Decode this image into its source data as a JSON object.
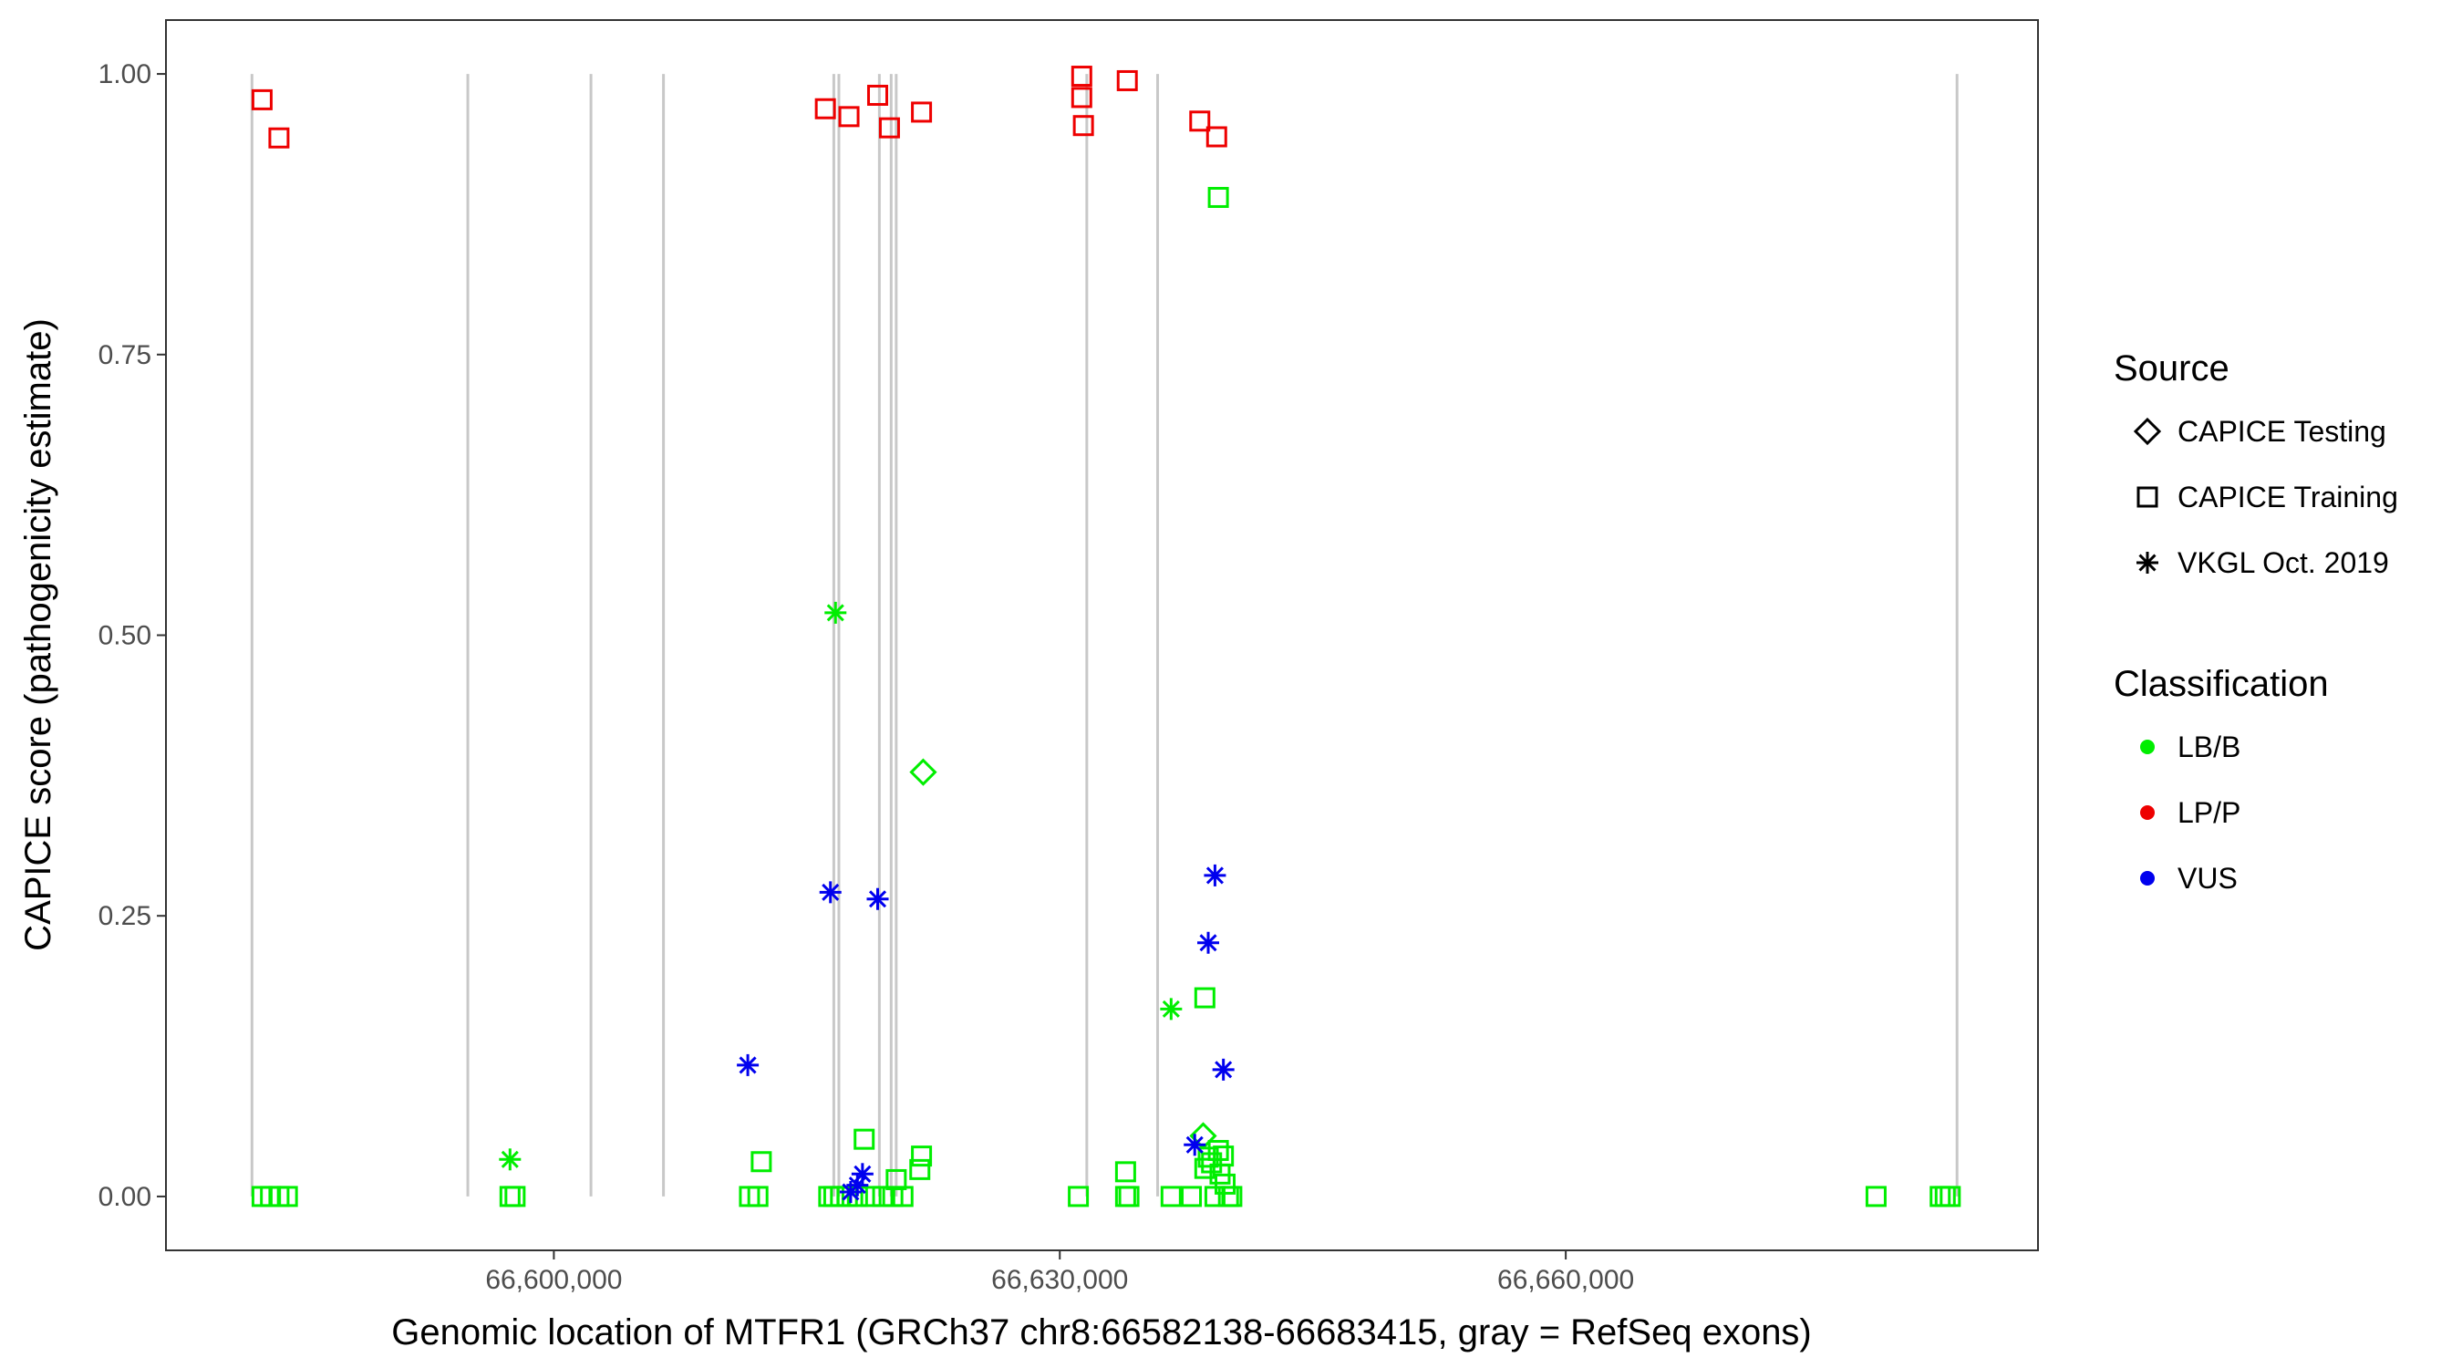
{
  "chart_data": {
    "type": "scatter",
    "xlabel": "Genomic location of MTFR1 (GRCh37 chr8:66582138-66683415, gray = RefSeq exons)",
    "ylabel": "CAPICE score (pathogenicity estimate)",
    "xlim": [
      66577000,
      66688000
    ],
    "ylim": [
      -0.048,
      1.048
    ],
    "x_ticks": [
      {
        "value": 66600000,
        "label": "66,600,000"
      },
      {
        "value": 66630000,
        "label": "66,630,000"
      },
      {
        "value": 66660000,
        "label": "66,660,000"
      }
    ],
    "y_ticks": [
      {
        "value": 0.0,
        "label": "0.00"
      },
      {
        "value": 0.25,
        "label": "0.25"
      },
      {
        "value": 0.5,
        "label": "0.50"
      },
      {
        "value": 0.75,
        "label": "0.75"
      },
      {
        "value": 1.0,
        "label": "1.00"
      }
    ],
    "grid": false,
    "exon_color": "#c8c8c8",
    "exons": [
      66582100,
      66594900,
      66602200,
      66606500,
      66616600,
      66616900,
      66619300,
      66620000,
      66620300,
      66631600,
      66635800,
      66683200
    ],
    "legends": [
      {
        "title": "Source",
        "items": [
          {
            "label": "CAPICE Testing",
            "shape": "diamond"
          },
          {
            "label": "CAPICE Training",
            "shape": "square"
          },
          {
            "label": "VKGL Oct. 2019",
            "shape": "asterisk"
          }
        ]
      },
      {
        "title": "Classification",
        "items": [
          {
            "label": "LB/B",
            "color": "#00ee00"
          },
          {
            "label": "LP/P",
            "color": "#ee0000"
          },
          {
            "label": "VUS",
            "color": "#0000ee"
          }
        ]
      }
    ],
    "legend_position": "right",
    "series": [
      {
        "source": "CAPICE Training",
        "classification": "LP/P",
        "points": [
          {
            "x": 66582700,
            "y": 0.977
          },
          {
            "x": 66583700,
            "y": 0.943
          },
          {
            "x": 66616100,
            "y": 0.969
          },
          {
            "x": 66617500,
            "y": 0.962
          },
          {
            "x": 66619200,
            "y": 0.981
          },
          {
            "x": 66619900,
            "y": 0.952
          },
          {
            "x": 66621800,
            "y": 0.966
          },
          {
            "x": 66631300,
            "y": 0.998
          },
          {
            "x": 66631300,
            "y": 0.979
          },
          {
            "x": 66631400,
            "y": 0.954
          },
          {
            "x": 66634000,
            "y": 0.994
          },
          {
            "x": 66638300,
            "y": 0.958
          },
          {
            "x": 66639300,
            "y": 0.944
          }
        ]
      },
      {
        "source": "CAPICE Training",
        "classification": "LB/B",
        "points": [
          {
            "x": 66582700,
            "y": 0.0
          },
          {
            "x": 66583200,
            "y": 0.0
          },
          {
            "x": 66583700,
            "y": 0.0
          },
          {
            "x": 66584200,
            "y": 0.0
          },
          {
            "x": 66597400,
            "y": 0.0
          },
          {
            "x": 66597700,
            "y": 0.0
          },
          {
            "x": 66611600,
            "y": 0.0
          },
          {
            "x": 66612100,
            "y": 0.0
          },
          {
            "x": 66612300,
            "y": 0.031
          },
          {
            "x": 66616300,
            "y": 0.0
          },
          {
            "x": 66616600,
            "y": 0.0
          },
          {
            "x": 66617000,
            "y": 0.0
          },
          {
            "x": 66617400,
            "y": 0.0
          },
          {
            "x": 66618000,
            "y": 0.0
          },
          {
            "x": 66618400,
            "y": 0.051
          },
          {
            "x": 66618800,
            "y": 0.0
          },
          {
            "x": 66619500,
            "y": 0.0
          },
          {
            "x": 66620100,
            "y": 0.0
          },
          {
            "x": 66620300,
            "y": 0.015
          },
          {
            "x": 66620700,
            "y": 0.0
          },
          {
            "x": 66621700,
            "y": 0.024
          },
          {
            "x": 66621800,
            "y": 0.036
          },
          {
            "x": 66631100,
            "y": 0.0
          },
          {
            "x": 66633900,
            "y": 0.022
          },
          {
            "x": 66633900,
            "y": 0.0
          },
          {
            "x": 66634100,
            "y": 0.0
          },
          {
            "x": 66636600,
            "y": 0.0
          },
          {
            "x": 66637800,
            "y": 0.0
          },
          {
            "x": 66638600,
            "y": 0.177
          },
          {
            "x": 66638600,
            "y": 0.025
          },
          {
            "x": 66638800,
            "y": 0.035
          },
          {
            "x": 66639000,
            "y": 0.03
          },
          {
            "x": 66639200,
            "y": 0.0
          },
          {
            "x": 66639400,
            "y": 0.89
          },
          {
            "x": 66639400,
            "y": 0.041
          },
          {
            "x": 66639500,
            "y": 0.02
          },
          {
            "x": 66639700,
            "y": 0.036
          },
          {
            "x": 66639800,
            "y": 0.011
          },
          {
            "x": 66640000,
            "y": 0.0
          },
          {
            "x": 66640200,
            "y": 0.0
          },
          {
            "x": 66678400,
            "y": 0.0
          },
          {
            "x": 66682200,
            "y": 0.0
          },
          {
            "x": 66682500,
            "y": 0.0
          },
          {
            "x": 66682800,
            "y": 0.0
          }
        ]
      },
      {
        "source": "CAPICE Testing",
        "classification": "LB/B",
        "points": [
          {
            "x": 66621900,
            "y": 0.378
          },
          {
            "x": 66638500,
            "y": 0.054
          }
        ]
      },
      {
        "source": "VKGL Oct. 2019",
        "classification": "LB/B",
        "points": [
          {
            "x": 66597400,
            "y": 0.033
          },
          {
            "x": 66616700,
            "y": 0.52
          },
          {
            "x": 66636600,
            "y": 0.167
          }
        ]
      },
      {
        "source": "VKGL Oct. 2019",
        "classification": "VUS",
        "points": [
          {
            "x": 66611500,
            "y": 0.117
          },
          {
            "x": 66616400,
            "y": 0.271
          },
          {
            "x": 66619200,
            "y": 0.265
          },
          {
            "x": 66617600,
            "y": 0.004
          },
          {
            "x": 66618000,
            "y": 0.01
          },
          {
            "x": 66618300,
            "y": 0.02
          },
          {
            "x": 66638000,
            "y": 0.046
          },
          {
            "x": 66638800,
            "y": 0.226
          },
          {
            "x": 66639200,
            "y": 0.286
          },
          {
            "x": 66639700,
            "y": 0.113
          }
        ]
      }
    ]
  }
}
